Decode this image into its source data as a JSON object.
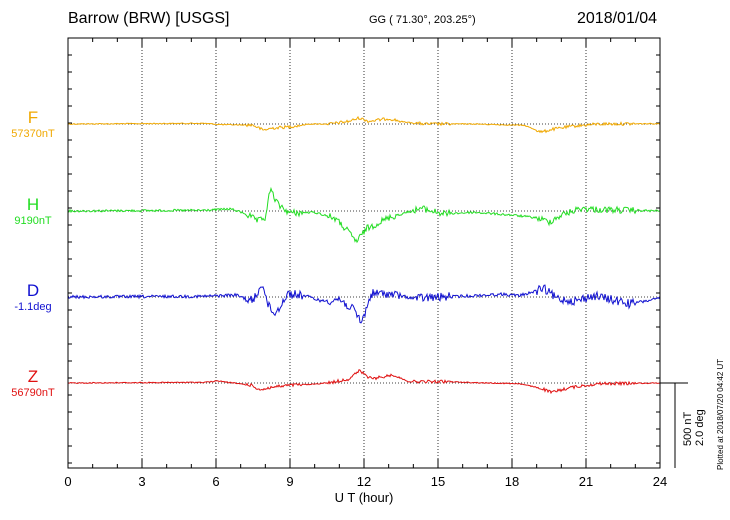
{
  "header": {
    "station": "Barrow (BRW)  [USGS]",
    "coords": "GG ( 71.30°, 203.25°)",
    "date": "2018/01/04"
  },
  "scale": {
    "nt": "500 nT",
    "deg": "2.0 deg"
  },
  "plotted": "Plotted at 2018/07/20 04:42 UT",
  "chart_data": {
    "type": "line",
    "xlabel": "U T (hour)",
    "xlim": [
      0,
      24
    ],
    "xticks": [
      "0",
      "3",
      "6",
      "9",
      "12",
      "15",
      "18",
      "21",
      "24"
    ],
    "grid": true,
    "units_per_px": 14.7,
    "series": [
      {
        "name": "F",
        "baseline_label": "57370nT",
        "color": "#f0a800",
        "points": [
          [
            0,
            0
          ],
          [
            5.5,
            10
          ],
          [
            6.3,
            -10
          ],
          [
            7.5,
            -15
          ],
          [
            7.9,
            -90
          ],
          [
            8.3,
            -60
          ],
          [
            9.0,
            -40
          ],
          [
            9.8,
            0
          ],
          [
            10.6,
            0
          ],
          [
            11.4,
            40
          ],
          [
            11.8,
            90
          ],
          [
            12.2,
            40
          ],
          [
            13.0,
            80
          ],
          [
            13.6,
            30
          ],
          [
            14.5,
            0
          ],
          [
            16.5,
            0
          ],
          [
            18.5,
            -20
          ],
          [
            19.2,
            -120
          ],
          [
            19.6,
            -80
          ],
          [
            20.5,
            -30
          ],
          [
            21.5,
            0
          ],
          [
            24,
            5
          ]
        ]
      },
      {
        "name": "H",
        "baseline_label": "9190nT",
        "color": "#22dd22",
        "points": [
          [
            0,
            0
          ],
          [
            5.5,
            10
          ],
          [
            6.6,
            30
          ],
          [
            7.2,
            -40
          ],
          [
            7.7,
            -150
          ],
          [
            8.0,
            -100
          ],
          [
            8.2,
            320
          ],
          [
            8.5,
            100
          ],
          [
            9.0,
            -30
          ],
          [
            10.0,
            -20
          ],
          [
            10.8,
            -100
          ],
          [
            11.3,
            -280
          ],
          [
            11.7,
            -450
          ],
          [
            12.1,
            -260
          ],
          [
            13.0,
            -100
          ],
          [
            14.3,
            40
          ],
          [
            15.2,
            -40
          ],
          [
            16.5,
            -20
          ],
          [
            18.0,
            -60
          ],
          [
            19.0,
            -100
          ],
          [
            19.5,
            -160
          ],
          [
            20.0,
            -60
          ],
          [
            20.8,
            40
          ],
          [
            21.5,
            20
          ],
          [
            24,
            0
          ]
        ]
      },
      {
        "name": "D",
        "baseline_label": "-1.1deg",
        "color": "#1010d0",
        "points": [
          [
            0,
            0
          ],
          [
            5.5,
            10
          ],
          [
            6.8,
            30
          ],
          [
            7.5,
            -60
          ],
          [
            7.9,
            210
          ],
          [
            8.1,
            -120
          ],
          [
            8.4,
            -250
          ],
          [
            8.9,
            50
          ],
          [
            9.6,
            20
          ],
          [
            10.3,
            -60
          ],
          [
            11.0,
            -30
          ],
          [
            11.6,
            -200
          ],
          [
            11.9,
            -380
          ],
          [
            12.3,
            50
          ],
          [
            13.0,
            50
          ],
          [
            14.0,
            -20
          ],
          [
            16.5,
            20
          ],
          [
            17.6,
            40
          ],
          [
            18.3,
            20
          ],
          [
            19.3,
            120
          ],
          [
            19.8,
            -20
          ],
          [
            20.6,
            -60
          ],
          [
            21.3,
            20
          ],
          [
            22.8,
            -100
          ],
          [
            24,
            -20
          ]
        ]
      },
      {
        "name": "Z",
        "baseline_label": "56790nT",
        "color": "#e01010",
        "points": [
          [
            0,
            0
          ],
          [
            5.5,
            10
          ],
          [
            6.1,
            30
          ],
          [
            6.7,
            0
          ],
          [
            7.4,
            -30
          ],
          [
            7.8,
            -100
          ],
          [
            8.3,
            -60
          ],
          [
            9.1,
            -30
          ],
          [
            9.9,
            -20
          ],
          [
            10.7,
            10
          ],
          [
            11.4,
            60
          ],
          [
            11.8,
            180
          ],
          [
            12.3,
            60
          ],
          [
            13.2,
            120
          ],
          [
            13.8,
            20
          ],
          [
            15.3,
            20
          ],
          [
            17.0,
            0
          ],
          [
            18.3,
            -10
          ],
          [
            19.2,
            -80
          ],
          [
            19.6,
            -140
          ],
          [
            20.3,
            -70
          ],
          [
            21.5,
            -10
          ],
          [
            24,
            0
          ]
        ]
      }
    ]
  }
}
